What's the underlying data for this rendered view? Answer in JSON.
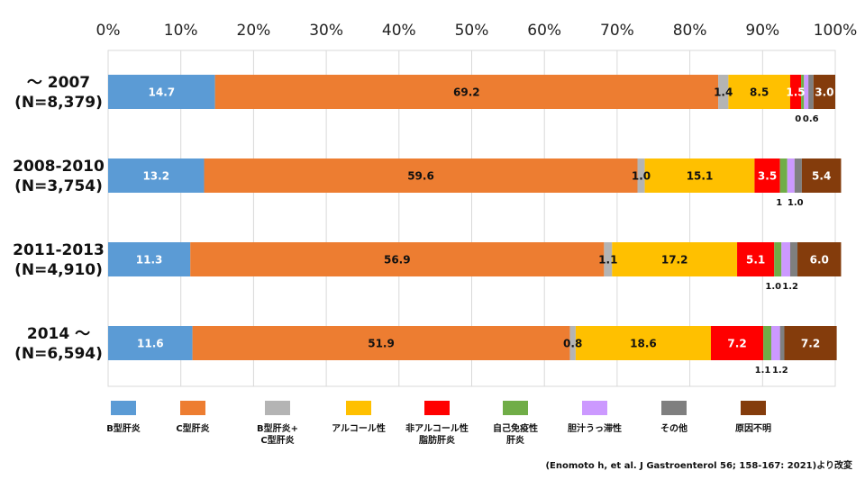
{
  "chart_data": {
    "type": "bar",
    "orientation": "horizontal",
    "stacked": true,
    "x_ticks": [
      "0%",
      "10%",
      "20%",
      "30%",
      "40%",
      "50%",
      "60%",
      "70%",
      "80%",
      "90%",
      "100%"
    ],
    "xlim": [
      0,
      100
    ],
    "grid": true,
    "legend_position": "bottom",
    "categories": [
      [
        "～ 2007",
        "(N=8,379)"
      ],
      [
        "2008-2010",
        "(N=3,754)"
      ],
      [
        "2011-2013",
        "(N=4,910)"
      ],
      [
        "2014 ～",
        "(N=6,594)"
      ]
    ],
    "series": [
      {
        "name": "B型肝炎",
        "color": "#5b9bd5",
        "values": [
          14.7,
          13.2,
          11.3,
          11.6
        ],
        "label_color": "#ffffff"
      },
      {
        "name": "C型肝炎",
        "color": "#ed7d31",
        "values": [
          69.2,
          59.6,
          56.9,
          51.9
        ],
        "label_color": "#111111"
      },
      {
        "name": "B型肝炎+\nC型肝炎",
        "color": "#b4b4b4",
        "values": [
          1.4,
          1.0,
          1.1,
          0.8
        ],
        "label_color": "#111111"
      },
      {
        "name": "アルコール性",
        "color": "#ffc000",
        "values": [
          8.5,
          15.1,
          17.2,
          18.6
        ],
        "label_color": "#111111"
      },
      {
        "name": "非アルコール性\n脂肪肝炎",
        "color": "#ff0000",
        "values": [
          1.5,
          3.5,
          5.1,
          7.2
        ],
        "label_color": "#ffffff"
      },
      {
        "name": "自己免疫性\n肝炎",
        "color": "#70ad47",
        "values": [
          0.4,
          1.0,
          1.0,
          1.1
        ],
        "label_color": "#111111"
      },
      {
        "name": "胆汁うっ滞性",
        "color": "#cc99ff",
        "values": [
          0.6,
          1.0,
          1.2,
          1.2
        ],
        "label_color": "#111111"
      },
      {
        "name": "その他",
        "color": "#7f7f7f",
        "values": [
          0.7,
          1.0,
          1.0,
          0.6
        ],
        "label_color": "#ffffff"
      },
      {
        "name": "原因不明",
        "color": "#843c0c",
        "values": [
          3.0,
          5.4,
          6.0,
          7.2
        ],
        "label_color": "#ffffff"
      }
    ],
    "data_labels": [
      {
        "bar": 0,
        "series": 0,
        "text": "14.7",
        "place": "inside"
      },
      {
        "bar": 0,
        "series": 1,
        "text": "69.2",
        "place": "inside"
      },
      {
        "bar": 0,
        "series": 2,
        "text": "1.4",
        "place": "inside"
      },
      {
        "bar": 0,
        "series": 3,
        "text": "8.5",
        "place": "inside"
      },
      {
        "bar": 0,
        "series": 4,
        "text": "1.5",
        "place": "inside"
      },
      {
        "bar": 0,
        "series": 5,
        "text": "0",
        "place": "below"
      },
      {
        "bar": 0,
        "series": 6,
        "text": "0.6",
        "place": "below"
      },
      {
        "bar": 0,
        "series": 8,
        "text": "3.0",
        "place": "inside"
      },
      {
        "bar": 1,
        "series": 0,
        "text": "13.2",
        "place": "inside"
      },
      {
        "bar": 1,
        "series": 1,
        "text": "59.6",
        "place": "inside"
      },
      {
        "bar": 1,
        "series": 2,
        "text": "1.0",
        "place": "inside"
      },
      {
        "bar": 1,
        "series": 3,
        "text": "15.1",
        "place": "inside"
      },
      {
        "bar": 1,
        "series": 4,
        "text": "3.5",
        "place": "inside"
      },
      {
        "bar": 1,
        "series": 5,
        "text": "1",
        "place": "below"
      },
      {
        "bar": 1,
        "series": 6,
        "text": "1.0",
        "place": "below"
      },
      {
        "bar": 1,
        "series": 8,
        "text": "5.4",
        "place": "inside"
      },
      {
        "bar": 2,
        "series": 0,
        "text": "11.3",
        "place": "inside"
      },
      {
        "bar": 2,
        "series": 1,
        "text": "56.9",
        "place": "inside"
      },
      {
        "bar": 2,
        "series": 2,
        "text": "1.1",
        "place": "inside"
      },
      {
        "bar": 2,
        "series": 3,
        "text": "17.2",
        "place": "inside"
      },
      {
        "bar": 2,
        "series": 4,
        "text": "5.1",
        "place": "inside"
      },
      {
        "bar": 2,
        "series": 5,
        "text": "1.0",
        "place": "below"
      },
      {
        "bar": 2,
        "series": 6,
        "text": "1.2",
        "place": "below"
      },
      {
        "bar": 2,
        "series": 8,
        "text": "6.0",
        "place": "inside"
      },
      {
        "bar": 3,
        "series": 0,
        "text": "11.6",
        "place": "inside"
      },
      {
        "bar": 3,
        "series": 1,
        "text": "51.9",
        "place": "inside"
      },
      {
        "bar": 3,
        "series": 2,
        "text": "0.8",
        "place": "inside"
      },
      {
        "bar": 3,
        "series": 3,
        "text": "18.6",
        "place": "inside"
      },
      {
        "bar": 3,
        "series": 4,
        "text": "7.2",
        "place": "inside"
      },
      {
        "bar": 3,
        "series": 5,
        "text": "1.1",
        "place": "below"
      },
      {
        "bar": 3,
        "series": 6,
        "text": "1.2",
        "place": "below"
      },
      {
        "bar": 3,
        "series": 8,
        "text": "7.2",
        "place": "inside"
      }
    ]
  },
  "source": "(Enomoto h, et al. J Gastroenterol 56; 158-167: 2021)より改変"
}
